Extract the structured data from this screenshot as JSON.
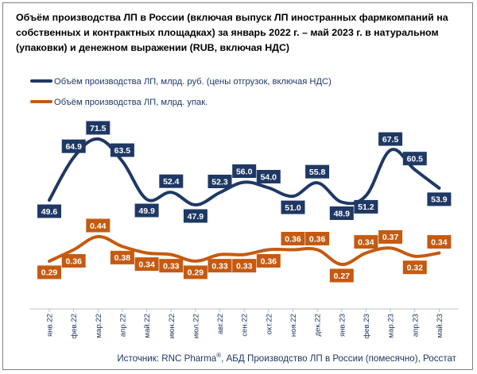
{
  "title": "Объём производства ЛП в России (включая выпуск ЛП иностранных фармкомпаний на собственных и контрактных площадках) за январь 2022 г. – май 2023 г. в натуральном (упаковки) и денежном выражении (RUB, включая НДС)",
  "source": {
    "prefix": "Источник: RNC Pharma",
    "reg": "®",
    "suffix": ", АБД Производство ЛП в России (помесячно), Росстат"
  },
  "colors": {
    "navy": "#1f3864",
    "orange": "#c55a11"
  },
  "chart_data": {
    "type": "line",
    "categories": [
      "янв.22",
      "фев.22",
      "мар.22",
      "апр.22",
      "май.22",
      "июн.22",
      "июл.22",
      "авг.22",
      "сен.22",
      "окт.22",
      "ноя.22",
      "дек.22",
      "янв.23",
      "фев.23",
      "мар.23",
      "апр.23",
      "май.23"
    ],
    "series": [
      {
        "name": "Объём производства ЛП, млрд. руб. (цены отгрузок, включая НДС)",
        "color": "#1f3864",
        "values": [
          49.6,
          64.9,
          71.5,
          63.5,
          49.9,
          52.4,
          47.9,
          52.3,
          56.0,
          54.0,
          51.0,
          55.8,
          48.9,
          51.2,
          67.5,
          60.5,
          53.9
        ],
        "labels": [
          "49.6",
          "64.9",
          "71.5",
          "63.5",
          "49.9",
          "52.4",
          "47.9",
          "52.3",
          "56.0",
          "54.0",
          "51.0",
          "55.8",
          "48.9",
          "51.2",
          "67.5",
          "60.5",
          "53.9"
        ],
        "label_pos": [
          "below",
          "above",
          "above",
          "above",
          "below",
          "above",
          "below",
          "above",
          "above",
          "above",
          "below",
          "above",
          "below",
          "below",
          "above",
          "above",
          "below"
        ]
      },
      {
        "name": "Объём производства ЛП, млрд. упак.",
        "color": "#c55a11",
        "values": [
          0.29,
          0.36,
          0.44,
          0.38,
          0.34,
          0.33,
          0.29,
          0.33,
          0.33,
          0.36,
          0.36,
          0.36,
          0.27,
          0.34,
          0.37,
          0.32,
          0.34
        ],
        "labels": [
          "0.29",
          "0.36",
          "0.44",
          "0.38",
          "0.34",
          "0.33",
          "0.29",
          "0.33",
          "0.33",
          "0.36",
          "0.36",
          "0.36",
          "0.27",
          "0.34",
          "0.37",
          "0.32",
          "0.34"
        ],
        "label_pos": [
          "below",
          "below",
          "above",
          "below",
          "below",
          "below",
          "below",
          "below",
          "below",
          "below",
          "above",
          "above",
          "below",
          "above",
          "above",
          "below",
          "above"
        ]
      }
    ],
    "legend": "top-left",
    "grid": false
  }
}
